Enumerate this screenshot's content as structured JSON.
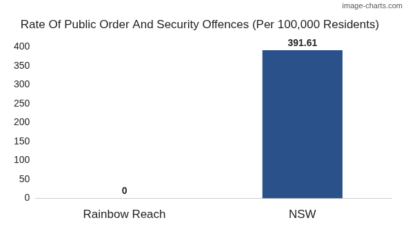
{
  "chart_data": {
    "type": "bar",
    "title": "Rate Of Public Order And Security Offences (Per 100,000 Residents)",
    "annotations": [
      "image-charts.com"
    ],
    "categories": [
      "Rainbow Reach",
      "NSW"
    ],
    "values": [
      0,
      391.61
    ],
    "color": "#2a5189",
    "ylim": [
      0,
      400
    ],
    "yticks": [
      0,
      50,
      100,
      150,
      200,
      250,
      300,
      350,
      400
    ],
    "grid": false,
    "data_labels": true
  }
}
